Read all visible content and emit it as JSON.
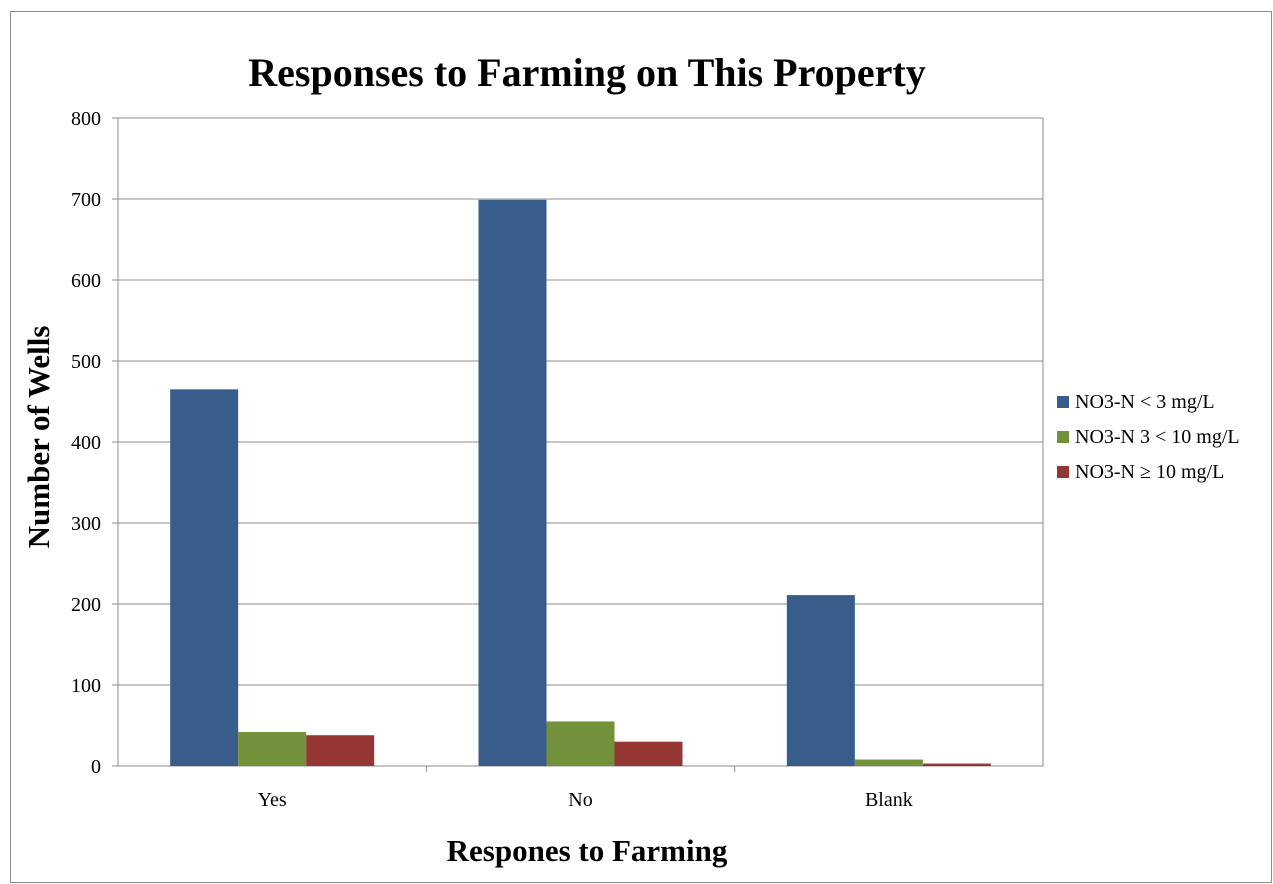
{
  "chart_data": {
    "type": "bar",
    "title": "Responses to Farming on This Property",
    "xlabel": "Respones to Farming",
    "ylabel": "Number of Wells",
    "categories": [
      "Yes",
      "No",
      "Blank"
    ],
    "series": [
      {
        "name": "NO3-N < 3 mg/L",
        "color": "#385d8a",
        "values": [
          465,
          699,
          211
        ]
      },
      {
        "name": "NO3-N 3 < 10 mg/L",
        "color": "#71913a",
        "values": [
          42,
          55,
          8
        ]
      },
      {
        "name": "NO3-N ≥ 10 mg/L",
        "color": "#943634",
        "values": [
          38,
          30,
          3
        ]
      }
    ],
    "ylim": [
      0,
      800
    ],
    "yticks": [
      "0",
      "100",
      "200",
      "300",
      "400",
      "500",
      "600",
      "700",
      "800"
    ],
    "grid": true,
    "legend_position": "right"
  }
}
